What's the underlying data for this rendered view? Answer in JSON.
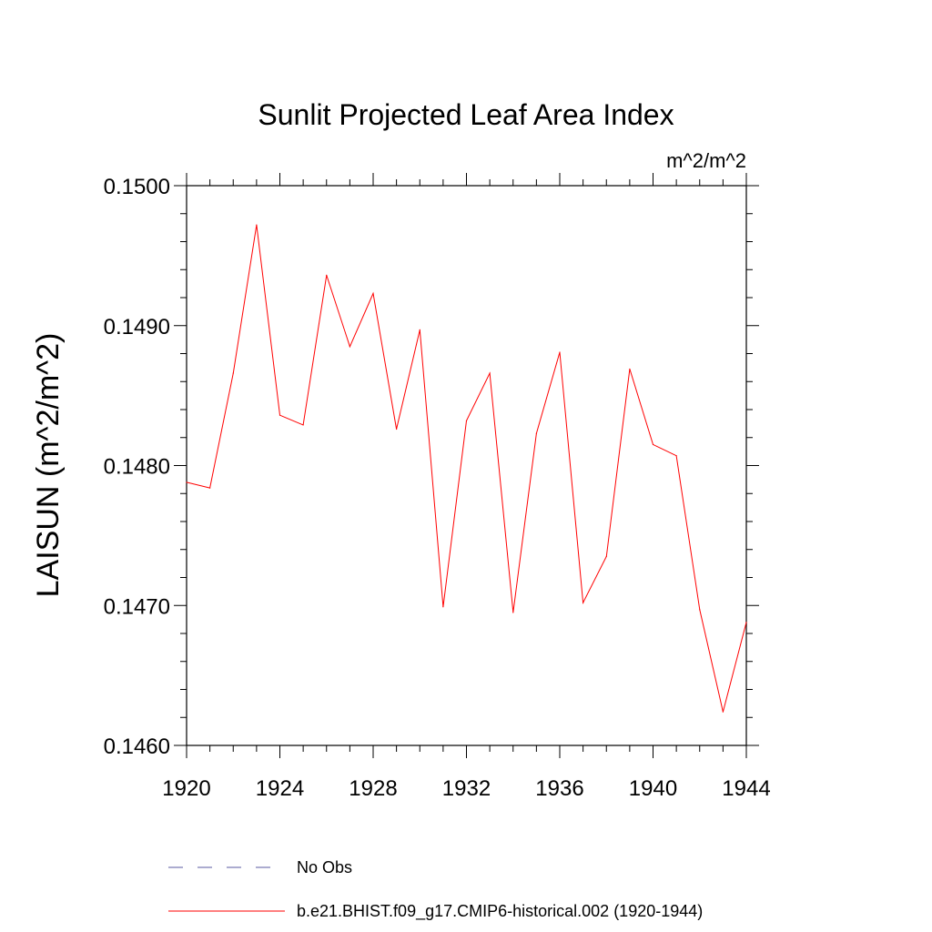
{
  "chart_data": {
    "type": "line",
    "title": "Sunlit Projected Leaf Area Index",
    "units": "m^2/m^2",
    "ylabel": "LAISUN  (m^2/m^2)",
    "xlabel": "",
    "xlim": [
      1920,
      1944
    ],
    "ylim": [
      0.146,
      0.15
    ],
    "x_ticks": [
      "1920",
      "1924",
      "1928",
      "1932",
      "1936",
      "1940",
      "1944"
    ],
    "y_ticks": [
      "0.1460",
      "0.1470",
      "0.1480",
      "0.1490",
      "0.1500"
    ],
    "x": [
      1920,
      1921,
      1922,
      1923,
      1924,
      1925,
      1926,
      1927,
      1928,
      1929,
      1930,
      1931,
      1932,
      1933,
      1934,
      1935,
      1936,
      1937,
      1938,
      1939,
      1940,
      1941,
      1942,
      1943,
      1944
    ],
    "series": [
      {
        "name": "b.e21.BHIST.f09_g17.CMIP6-historical.002 (1920-1944)",
        "color": "#ff0000",
        "values": [
          0.14788,
          0.14784,
          0.14866,
          0.14972,
          0.14836,
          0.14829,
          0.14936,
          0.14885,
          0.14923,
          0.14826,
          0.14897,
          0.14699,
          0.14832,
          0.14866,
          0.14695,
          0.14823,
          0.14881,
          0.14702,
          0.14735,
          0.14869,
          0.14815,
          0.14807,
          0.14697,
          0.14624,
          0.14688
        ]
      }
    ],
    "legend": [
      {
        "label": "No Obs",
        "color": "#5a5aa0",
        "style": "dashed"
      },
      {
        "label": "b.e21.BHIST.f09_g17.CMIP6-historical.002 (1920-1944)",
        "color": "#ff0000",
        "style": "solid"
      }
    ],
    "grid": false,
    "legend_position": "bottom"
  }
}
